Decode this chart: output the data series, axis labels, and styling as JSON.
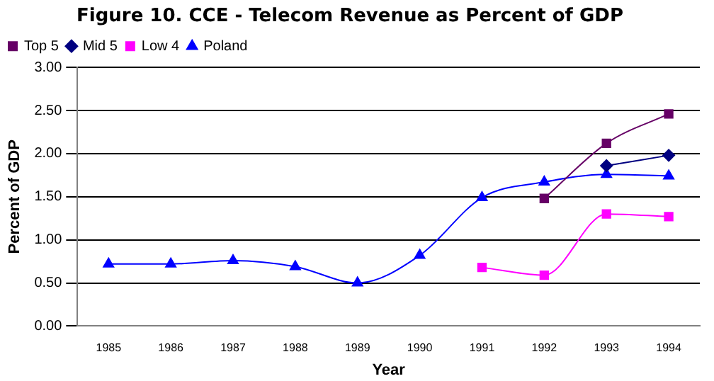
{
  "chart_data": {
    "type": "line",
    "title": "Figure 10. CCE - Telecom Revenue as Percent of GDP",
    "xlabel": "Year",
    "ylabel": "Percent of GDP",
    "categories": [
      "1985",
      "1986",
      "1987",
      "1988",
      "1989",
      "1990",
      "1991",
      "1992",
      "1993",
      "1994"
    ],
    "series": [
      {
        "name": "Top 5",
        "color": "#660066",
        "marker": "square",
        "values": [
          null,
          null,
          null,
          null,
          null,
          null,
          null,
          1.48,
          2.12,
          2.46
        ]
      },
      {
        "name": "Mid 5",
        "color": "#000080",
        "marker": "diamond",
        "values": [
          null,
          null,
          null,
          null,
          null,
          null,
          null,
          null,
          1.86,
          1.98
        ]
      },
      {
        "name": "Low 4",
        "color": "#ff00ff",
        "marker": "square",
        "values": [
          null,
          null,
          null,
          null,
          null,
          null,
          0.68,
          0.59,
          1.3,
          1.27
        ]
      },
      {
        "name": "Poland",
        "color": "#0000ff",
        "marker": "triangle",
        "values": [
          0.72,
          0.72,
          0.76,
          0.69,
          0.5,
          0.82,
          1.49,
          1.67,
          1.76,
          1.74
        ]
      }
    ],
    "ylim": [
      0,
      3
    ],
    "yticks": [
      {
        "value": 0,
        "label": "0.00"
      },
      {
        "value": 0.5,
        "label": "0.50"
      },
      {
        "value": 1,
        "label": "1.00"
      },
      {
        "value": 1.5,
        "label": "1.50"
      },
      {
        "value": 2,
        "label": "2.00"
      },
      {
        "value": 2.5,
        "label": "2.50"
      },
      {
        "value": 3,
        "label": "3.00"
      }
    ],
    "grid": "y",
    "legend": "top left",
    "line_style": "solid"
  }
}
